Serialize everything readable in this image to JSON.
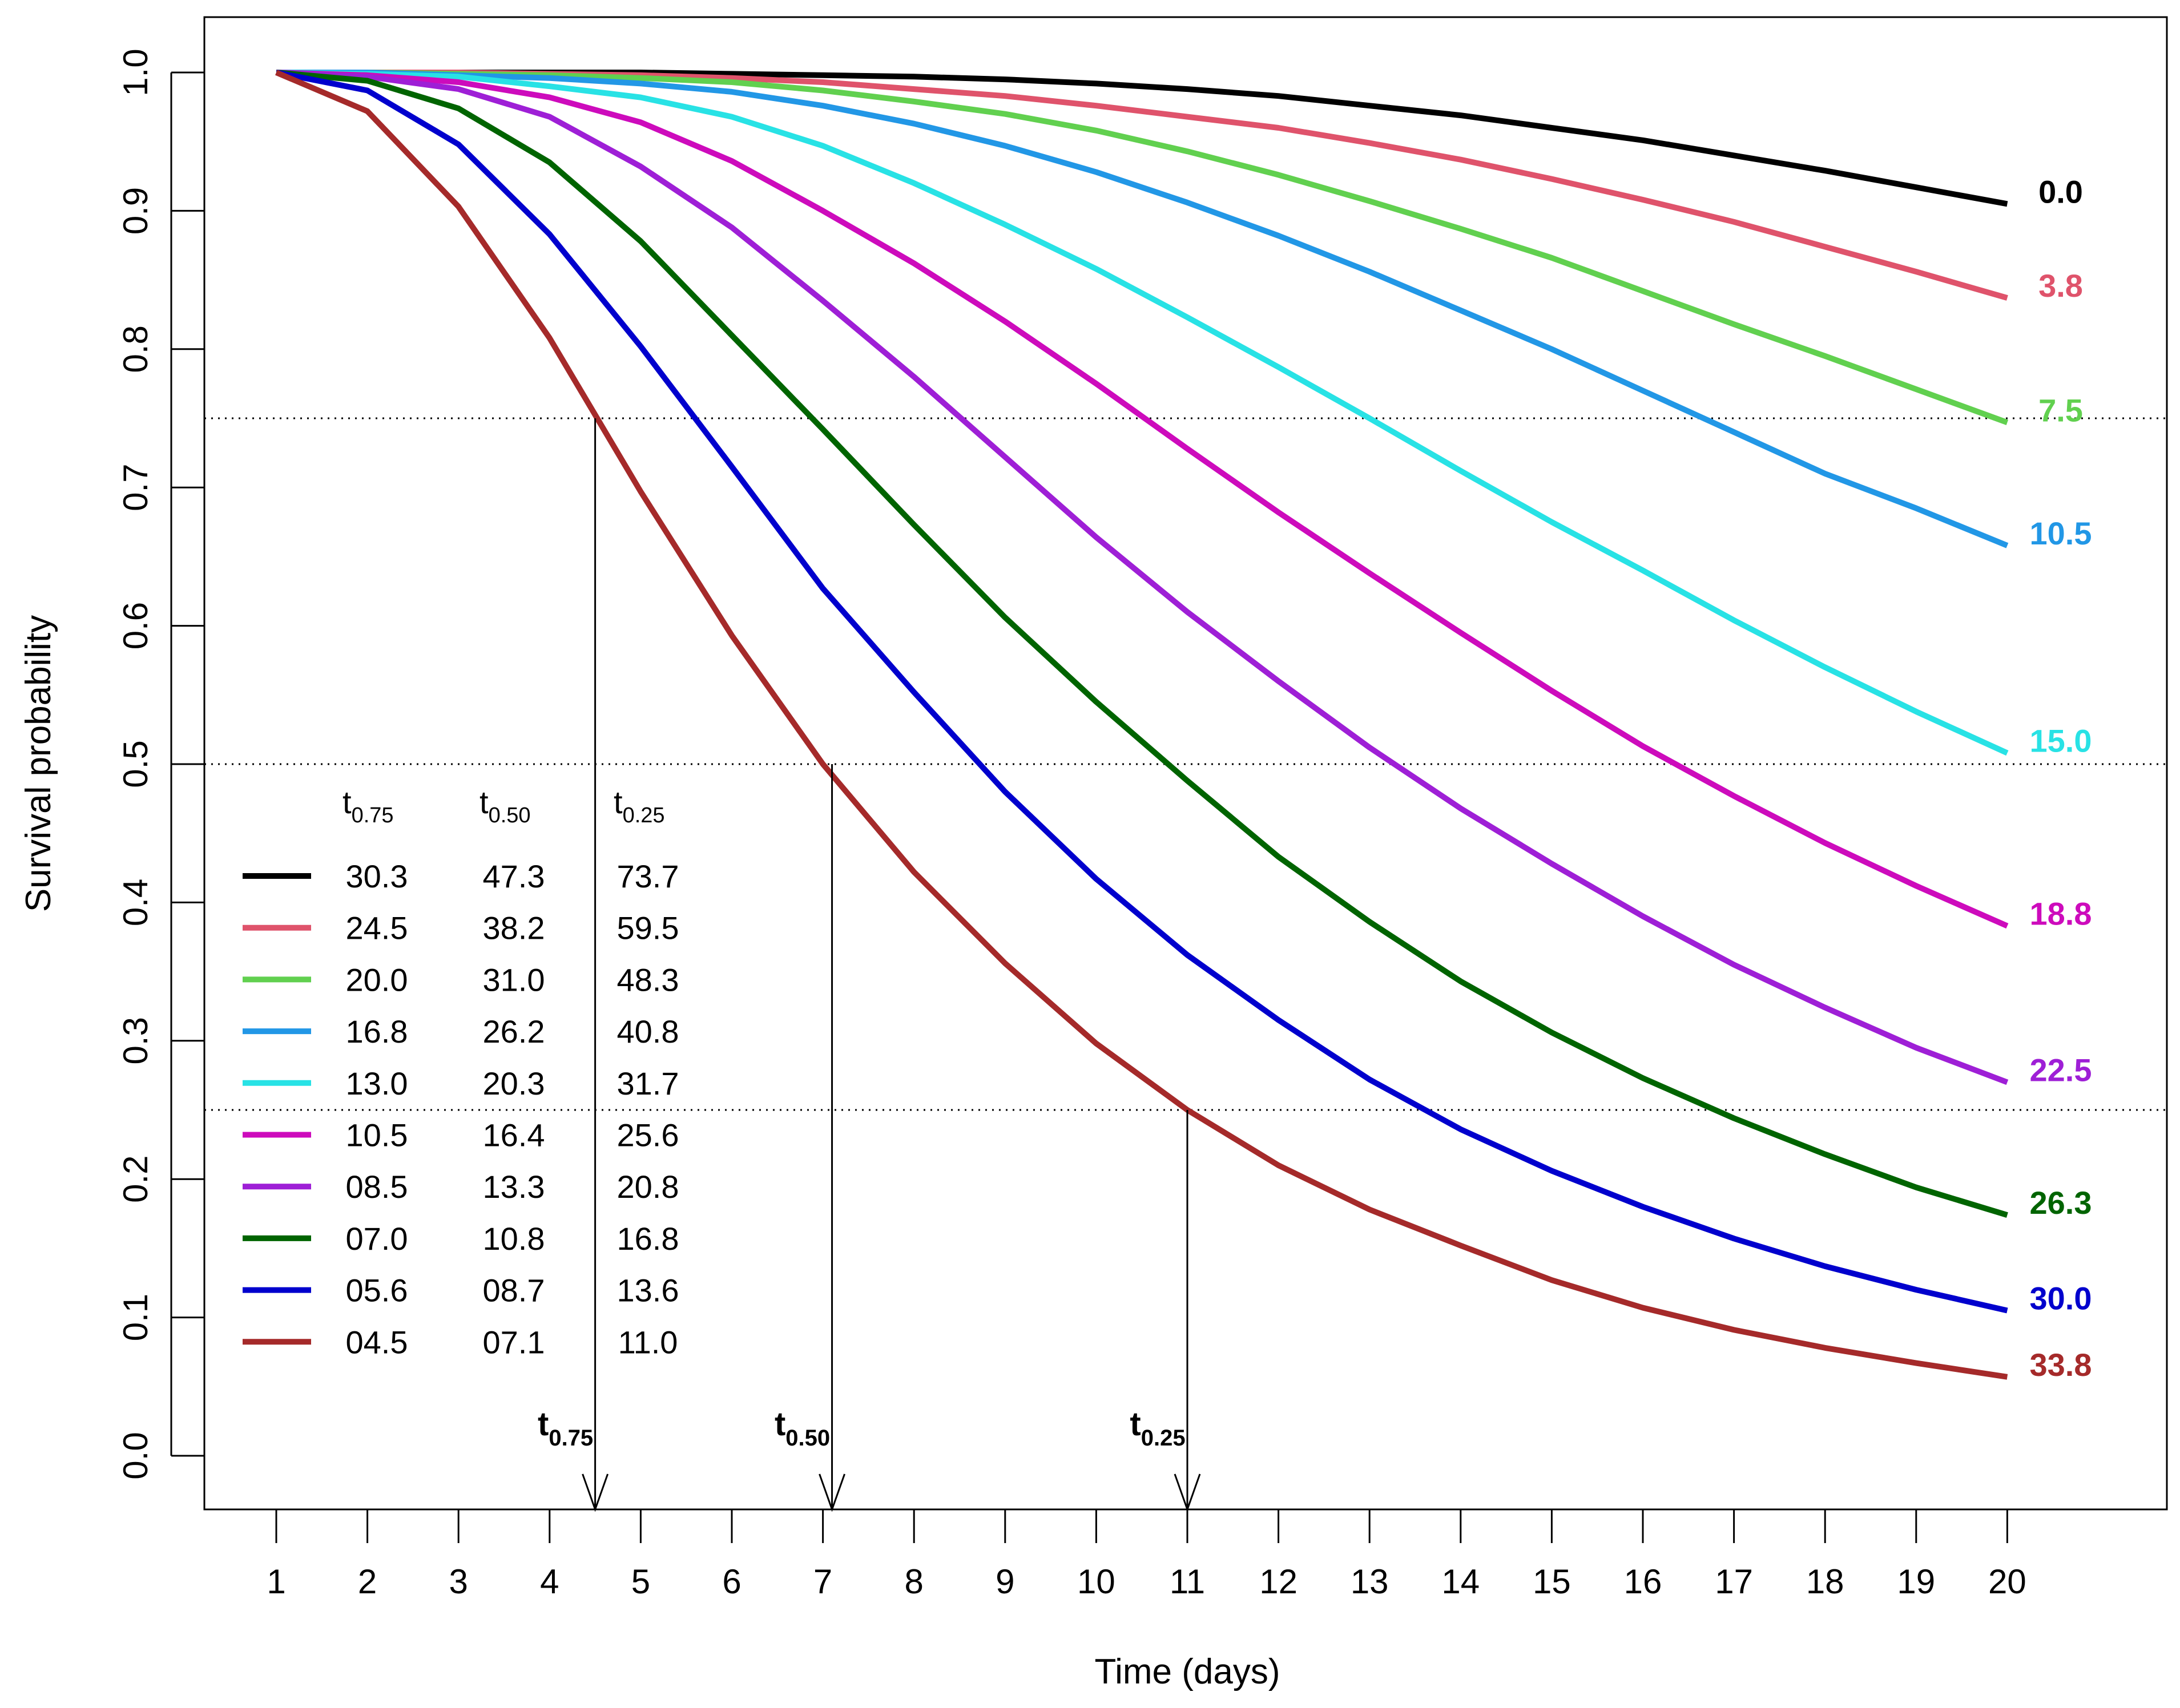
{
  "chart_data": {
    "type": "line",
    "xlabel": "Time (days)",
    "ylabel": "Survival probability",
    "xlim": [
      1,
      20
    ],
    "ylim": [
      0,
      1
    ],
    "x_ticks": [
      1,
      2,
      3,
      4,
      5,
      6,
      7,
      8,
      9,
      10,
      11,
      12,
      13,
      14,
      15,
      16,
      17,
      18,
      19,
      20
    ],
    "y_ticks": [
      "0.0",
      "0.1",
      "0.2",
      "0.3",
      "0.4",
      "0.5",
      "0.6",
      "0.7",
      "0.8",
      "0.9",
      "1.0"
    ],
    "reference_lines": [
      0.75,
      0.5,
      0.25
    ],
    "legend_headers": [
      {
        "main": "t",
        "sub": "0.75"
      },
      {
        "main": "t",
        "sub": "0.50"
      },
      {
        "main": "t",
        "sub": "0.25"
      }
    ],
    "annotations": [
      {
        "main": "t",
        "sub": "0.75",
        "x": 4.5,
        "y": 0.75
      },
      {
        "main": "t",
        "sub": "0.50",
        "x": 7.1,
        "y": 0.5
      },
      {
        "main": "t",
        "sub": "0.25",
        "x": 11.0,
        "y": 0.25
      }
    ],
    "series": [
      {
        "name": "0.0",
        "color": "#000000",
        "legend": [
          "30.3",
          "47.3",
          "73.7"
        ],
        "values": [
          1.0,
          1.0,
          1.0,
          1.0,
          1.0,
          0.999,
          0.998,
          0.997,
          0.995,
          0.992,
          0.988,
          0.983,
          0.976,
          0.969,
          0.96,
          0.951,
          0.94,
          0.929,
          0.917,
          0.905
        ]
      },
      {
        "name": "3.8",
        "color": "#DF536B",
        "legend": [
          "24.5",
          "38.2",
          "59.5"
        ],
        "values": [
          1.0,
          1.0,
          1.0,
          0.999,
          0.998,
          0.996,
          0.993,
          0.988,
          0.983,
          0.976,
          0.968,
          0.96,
          0.949,
          0.937,
          0.923,
          0.908,
          0.892,
          0.874,
          0.856,
          0.837
        ]
      },
      {
        "name": "7.5",
        "color": "#61D04F",
        "legend": [
          "20.0",
          "31.0",
          "48.3"
        ],
        "values": [
          1.0,
          1.0,
          0.999,
          0.998,
          0.996,
          0.993,
          0.987,
          0.979,
          0.97,
          0.958,
          0.943,
          0.926,
          0.907,
          0.887,
          0.866,
          0.842,
          0.818,
          0.795,
          0.771,
          0.747
        ]
      },
      {
        "name": "10.5",
        "color": "#2297E6",
        "legend": [
          "16.8",
          "26.2",
          "40.8"
        ],
        "values": [
          1.0,
          1.0,
          0.998,
          0.996,
          0.992,
          0.986,
          0.976,
          0.963,
          0.947,
          0.928,
          0.906,
          0.882,
          0.856,
          0.828,
          0.8,
          0.77,
          0.74,
          0.71,
          0.685,
          0.658
        ]
      },
      {
        "name": "15.0",
        "color": "#28E2E5",
        "legend": [
          "13.0",
          "20.3",
          "31.7"
        ],
        "values": [
          1.0,
          0.999,
          0.997,
          0.99,
          0.982,
          0.968,
          0.947,
          0.92,
          0.89,
          0.858,
          0.823,
          0.787,
          0.75,
          0.712,
          0.675,
          0.64,
          0.604,
          0.57,
          0.538,
          0.508
        ]
      },
      {
        "name": "18.8",
        "color": "#CD0BBC",
        "legend": [
          "10.5",
          "16.4",
          "25.6"
        ],
        "values": [
          1.0,
          0.998,
          0.993,
          0.982,
          0.964,
          0.936,
          0.9,
          0.862,
          0.82,
          0.775,
          0.728,
          0.682,
          0.638,
          0.595,
          0.553,
          0.513,
          0.477,
          0.443,
          0.412,
          0.383
        ]
      },
      {
        "name": "22.5",
        "color": "#9E1FD6",
        "legend": [
          "08.5",
          "13.3",
          "20.8"
        ],
        "values": [
          1.0,
          0.997,
          0.988,
          0.968,
          0.932,
          0.888,
          0.835,
          0.78,
          0.722,
          0.664,
          0.61,
          0.56,
          0.512,
          0.468,
          0.428,
          0.39,
          0.355,
          0.324,
          0.295,
          0.27
        ]
      },
      {
        "name": "26.3",
        "color": "#006400",
        "legend": [
          "07.0",
          "10.8",
          "16.8"
        ],
        "values": [
          1.0,
          0.994,
          0.974,
          0.935,
          0.878,
          0.81,
          0.742,
          0.673,
          0.606,
          0.545,
          0.488,
          0.433,
          0.386,
          0.343,
          0.306,
          0.273,
          0.244,
          0.218,
          0.194,
          0.174
        ]
      },
      {
        "name": "30.0",
        "color": "#0000CD",
        "legend": [
          "05.6",
          "08.7",
          "13.6"
        ],
        "values": [
          1.0,
          0.987,
          0.948,
          0.883,
          0.802,
          0.715,
          0.627,
          0.552,
          0.48,
          0.417,
          0.362,
          0.315,
          0.272,
          0.236,
          0.206,
          0.18,
          0.157,
          0.137,
          0.12,
          0.105
        ]
      },
      {
        "name": "33.8",
        "color": "#A52A2A",
        "legend": [
          "04.5",
          "07.1",
          "11.0"
        ],
        "values": [
          1.0,
          0.972,
          0.903,
          0.808,
          0.697,
          0.593,
          0.5,
          0.422,
          0.356,
          0.298,
          0.25,
          0.21,
          0.178,
          0.152,
          0.127,
          0.107,
          0.091,
          0.078,
          0.067,
          0.057
        ]
      }
    ]
  }
}
